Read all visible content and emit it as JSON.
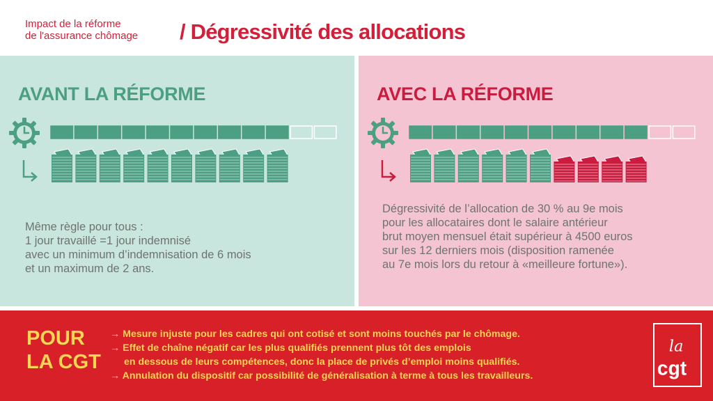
{
  "header": {
    "subtitle_line1": "Impact de la réforme",
    "subtitle_line2": "de l'assurance chômage",
    "title": "/ Dégressivité des allocations"
  },
  "left_panel": {
    "heading": "AVANT LA RÉFORME",
    "duration_filled": 10,
    "duration_total": 12,
    "allowance_stacks": 10,
    "reduced_stacks": 0,
    "text_lines": [
      "Même règle pour tous :",
      "1 jour travaillé =1 jour indemnisé",
      "avec un minimum d’indemnisation de 6 mois",
      "et un maximum de 2 ans."
    ],
    "icons": [
      "clock-gear-icon",
      "arrow-icon",
      "money-stack-icon"
    ]
  },
  "right_panel": {
    "heading": "AVEC LA RÉFORME",
    "duration_filled": 10,
    "duration_total": 12,
    "allowance_stacks": 6,
    "reduced_stacks": 4,
    "text_lines": [
      "Dégressivité de l’allocation de 30 % au 9e mois",
      "pour les allocataires dont le salaire antérieur",
      "brut moyen mensuel était supérieur à  4500 euros",
      "sur les 12 derniers mois (disposition ramenée",
      "au 7e mois lors du retour à «meilleure fortune»)."
    ]
  },
  "footer": {
    "label_line1": "POUR",
    "label_line2": "LA CGT",
    "points": [
      "→ Mesure injuste pour les cadres qui ont cotisé et sont moins touchés par le chômage.",
      "→ Effet de chaîne négatif car les plus qualifiés prennent plus tôt des emplois",
      "en dessous de leurs compétences, donc la place de privés d’emploi moins qualifiés.",
      "→ Annulation du dispositif car possibilité de généralisation à terme à tous les travailleurs."
    ],
    "logo_text_top": "la",
    "logo_text_bottom": "cgt"
  },
  "colors": {
    "brand_red": "#d72027",
    "title_red": "#d2203a",
    "green": "#4c9f82",
    "green_bg": "#c8e6dd",
    "pink_bg": "#f5c4d2",
    "crimson": "#c91c3f",
    "yellow": "#f6d653",
    "gray_text": "#6f7370"
  }
}
